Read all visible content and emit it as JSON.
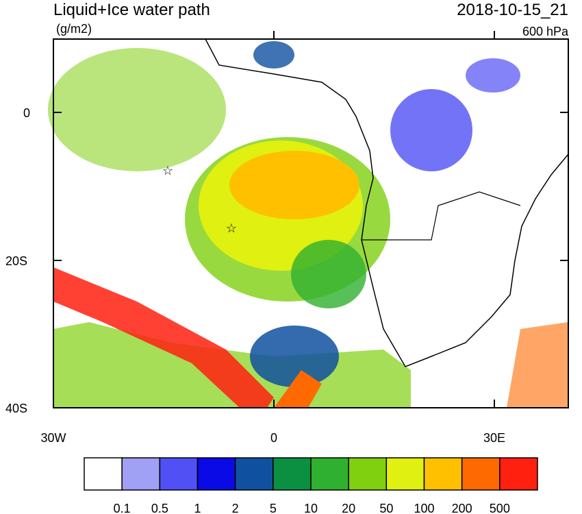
{
  "header": {
    "title": "Liquid+Ice water path",
    "units": "(g/m2)",
    "time": "2018-10-15_21",
    "level": "600 hPa"
  },
  "map": {
    "lat_labels": [
      "0",
      "20S",
      "40S"
    ],
    "lon_labels": [
      "30W",
      "0",
      "30E"
    ]
  },
  "colorbar": {
    "colors": [
      "#ffffff",
      "#a0a0f5",
      "#5050f5",
      "#0a0ae6",
      "#1050a0",
      "#0a9040",
      "#30b030",
      "#80d010",
      "#e0f010",
      "#ffc000",
      "#ff6a00",
      "#ff2010"
    ],
    "labels": [
      "0.1",
      "0.5",
      "1",
      "2",
      "5",
      "10",
      "20",
      "50",
      "100",
      "200",
      "500"
    ]
  }
}
